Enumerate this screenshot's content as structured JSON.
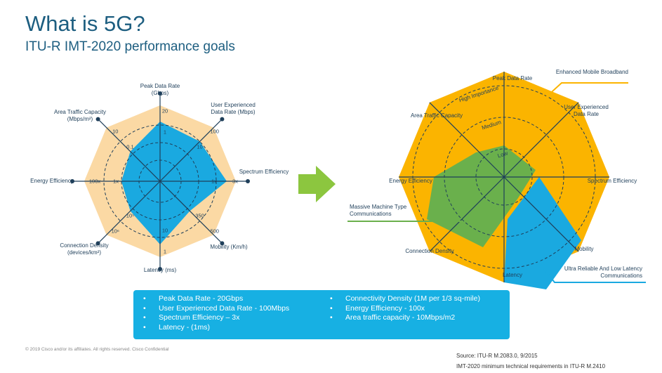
{
  "header": {
    "title": "What is 5G?",
    "subtitle": "ITU-R IMT-2020 performance goals"
  },
  "left_radar": {
    "axes": [
      {
        "label": "Peak Data Rate (Gbps)",
        "ticks": [
          "20",
          "1"
        ]
      },
      {
        "label": "User Experienced Data Rate (Mbps)",
        "ticks": [
          "100",
          "10"
        ]
      },
      {
        "label": "Spectrum Efficiency",
        "ticks": [
          "3x",
          "1x"
        ]
      },
      {
        "label": "Mobility (Km/h)",
        "ticks": [
          "500",
          "350"
        ]
      },
      {
        "label": "Latency (ms)",
        "ticks": [
          "1",
          "10"
        ]
      },
      {
        "label": "Connection Density (devices/km²)",
        "ticks": [
          "10⁶",
          "10⁵"
        ]
      },
      {
        "label": "Energy Efficiency",
        "ticks": [
          "100x",
          "1x"
        ]
      },
      {
        "label": "Area Traffic Capacity (Mbps/m²)",
        "ticks": [
          "10",
          "0.1"
        ]
      }
    ]
  },
  "right_radar": {
    "axes": [
      "Peak Data Rate",
      "User Experienced Data Rate",
      "Spectrum Efficiency",
      "Mobility",
      "Latency",
      "Connection Density",
      "Energy Efficiency",
      "Area Traffic Capacity"
    ],
    "levels": [
      "High Importance",
      "Medium",
      "Low"
    ],
    "use_cases": [
      "Enhanced Mobile Broadband",
      "Massive Machine Type Communications",
      "Ultra Reliable And Low Latency Communications"
    ]
  },
  "bullets": {
    "left": [
      "Peak Data Rate - 20Gbps",
      "User Experienced Data Rate - 100Mbps",
      "Spectrum Efficiency – 3x",
      "Latency - (1ms)"
    ],
    "right": [
      "Connectivity Density (1M per 1/3 sq-mile)",
      "Energy Efficiency - 100x",
      "Area traffic capacity - 10Mbps/m2"
    ]
  },
  "footer": {
    "copyright": "© 2019 Cisco and/or its affiliates. All rights reserved. Cisco Confidential",
    "source": "Source: ITU-R M.2083.0, 9/2015",
    "requirements": "IMT-2020 minimum technical requirements in ITU-R M.2410"
  }
}
